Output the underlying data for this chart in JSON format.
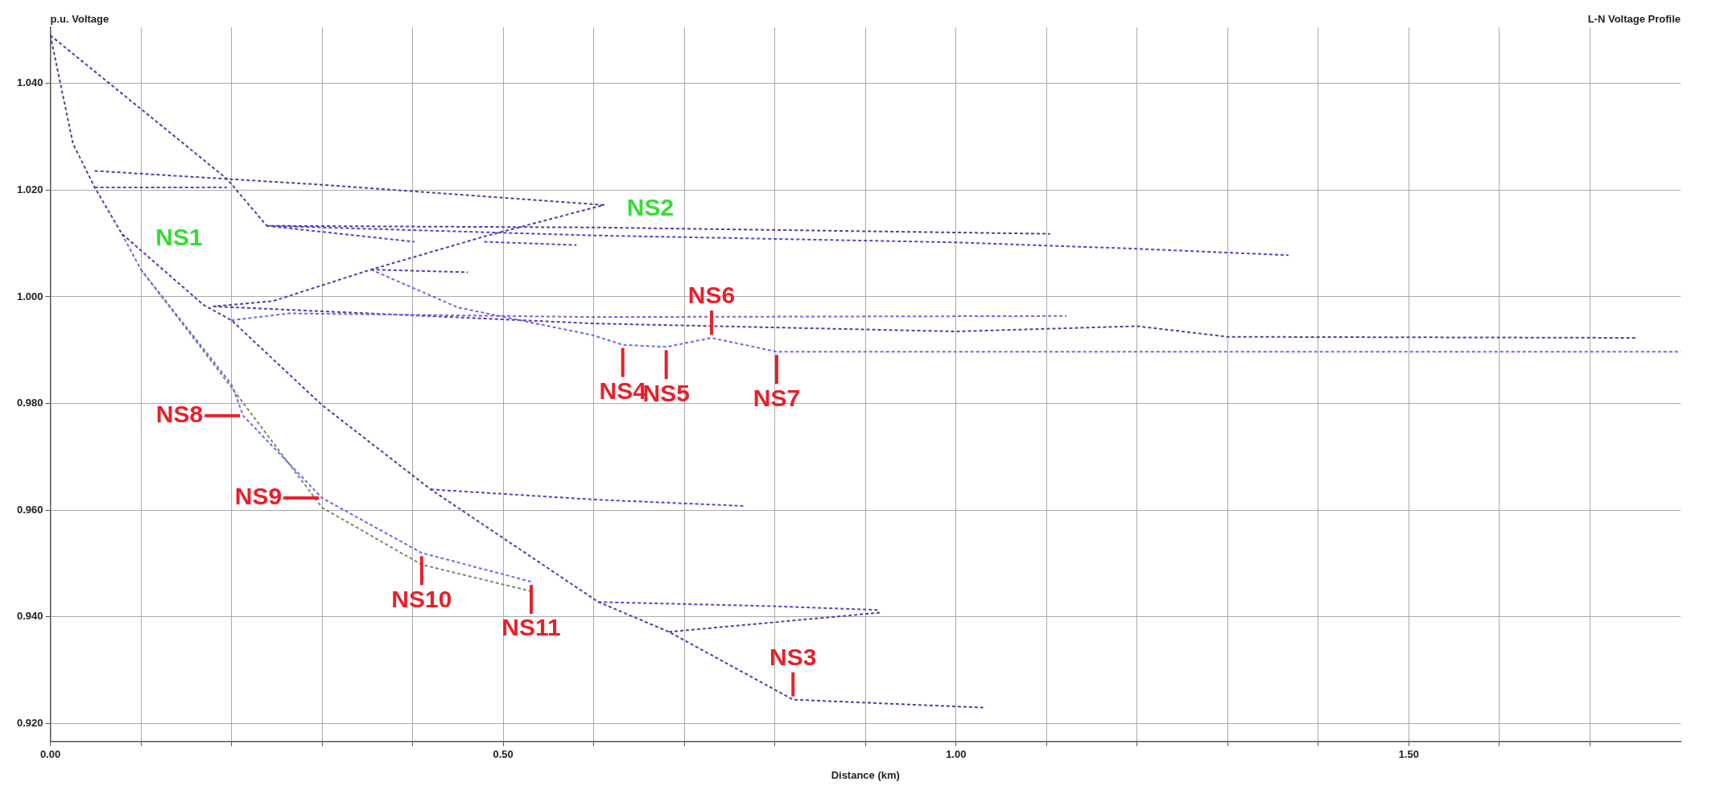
{
  "chart_data": {
    "type": "line",
    "title": "L-N Voltage Profile",
    "xlabel": "Distance (km)",
    "ylabel": "p.u. Voltage",
    "xlim": [
      0,
      1.8
    ],
    "ylim": [
      0.9167,
      1.0505
    ],
    "xticks": [
      {
        "value": 0,
        "label": "0.00"
      },
      {
        "value": 0.1,
        "label": null
      },
      {
        "value": 0.2,
        "label": null
      },
      {
        "value": 0.3,
        "label": null
      },
      {
        "value": 0.4,
        "label": null
      },
      {
        "value": 0.5,
        "label": "0.50"
      },
      {
        "value": 0.6,
        "label": null
      },
      {
        "value": 0.7,
        "label": null
      },
      {
        "value": 0.8,
        "label": null
      },
      {
        "value": 0.9,
        "label": null
      },
      {
        "value": 1.0,
        "label": "1.00"
      },
      {
        "value": 1.1,
        "label": null
      },
      {
        "value": 1.2,
        "label": null
      },
      {
        "value": 1.3,
        "label": null
      },
      {
        "value": 1.4,
        "label": null
      },
      {
        "value": 1.5,
        "label": "1.50"
      },
      {
        "value": 1.6,
        "label": null
      },
      {
        "value": 1.7,
        "label": null
      }
    ],
    "yticks": [
      {
        "value": 0.92,
        "label": "0.920"
      },
      {
        "value": 0.94,
        "label": "0.940"
      },
      {
        "value": 0.96,
        "label": "0.960"
      },
      {
        "value": 0.98,
        "label": "0.980"
      },
      {
        "value": 1.0,
        "label": "1.000"
      },
      {
        "value": 1.02,
        "label": "1.020"
      },
      {
        "value": 1.04,
        "label": "1.040"
      }
    ],
    "grid": true,
    "legend": false,
    "marker": "none",
    "line_style": "dashed",
    "series": [
      {
        "color": "#5a3aa8",
        "x": [
          0,
          0.195,
          0.239,
          0.6,
          1.104
        ],
        "values": [
          1.049,
          1.0221,
          1.0133,
          1.013,
          1.0118
        ]
      },
      {
        "color": "#4a4ad0",
        "x": [
          0.239,
          0.6,
          1.0,
          1.2,
          1.367
        ],
        "values": [
          1.0133,
          1.0115,
          1.0102,
          1.009,
          1.0078
        ]
      },
      {
        "color": "#5a3aa8",
        "x": [
          0,
          0.025,
          0.049,
          0.079,
          0.169,
          0.2,
          0.3,
          0.42,
          0.605,
          0.683,
          0.82,
          1.03
        ],
        "values": [
          1.049,
          1.0287,
          1.0205,
          1.0118,
          0.9985,
          0.9956,
          0.9797,
          0.9639,
          0.9428,
          0.9372,
          0.9245,
          0.923
        ]
      },
      {
        "color": "#4a4ad0",
        "x": [
          0.42,
          0.6,
          0.765
        ],
        "values": [
          0.9639,
          0.962,
          0.9608
        ]
      },
      {
        "color": "#4a4ad0",
        "x": [
          0.605,
          0.8,
          0.916
        ],
        "values": [
          0.9428,
          0.942,
          0.9413
        ]
      },
      {
        "color": "#5a3aa8",
        "x": [
          0.683,
          0.916
        ],
        "values": [
          0.9372,
          0.9408
        ]
      },
      {
        "color": "#6a6af0",
        "x": [
          0.079,
          0.1,
          0.2,
          0.213,
          0.3,
          0.41,
          0.531
        ],
        "values": [
          1.0118,
          1.0051,
          0.9836,
          0.9777,
          0.9623,
          0.952,
          0.9466
        ]
      },
      {
        "color": "#7a8a6a",
        "x": [
          0.1,
          0.2,
          0.3,
          0.41,
          0.531
        ],
        "values": [
          1.0051,
          0.983,
          0.9605,
          0.9498,
          0.9448
        ]
      },
      {
        "color": "#5a3aa8",
        "x": [
          0.049,
          0.3,
          0.611,
          0.479,
          0.354,
          0.246,
          0.18
        ],
        "values": [
          1.0236,
          1.021,
          1.0172,
          1.0113,
          1.0051,
          0.9992,
          0.9982
        ]
      },
      {
        "color": "#4a4ad0",
        "x": [
          0.049,
          0.195
        ],
        "values": [
          1.0205,
          1.0205
        ]
      },
      {
        "color": "#5a3aa8",
        "x": [
          0.354,
          0.461
        ],
        "values": [
          1.0051,
          1.0046
        ]
      },
      {
        "color": "#4a4ad0",
        "x": [
          0.239,
          0.402
        ],
        "values": [
          1.0133,
          1.0103
        ]
      },
      {
        "color": "#4a4ad0",
        "x": [
          0.479,
          0.581
        ],
        "values": [
          1.0103,
          1.0097
        ]
      },
      {
        "color": "#6a6af0",
        "x": [
          0.354,
          0.45,
          0.599,
          0.632,
          0.68,
          0.73,
          0.802,
          1.8
        ],
        "values": [
          1.0051,
          0.998,
          0.9928,
          0.991,
          0.9906,
          0.9923,
          0.9897,
          0.9897
        ]
      },
      {
        "color": "#6a6af0",
        "x": [
          0.2,
          0.264,
          0.599,
          1.122
        ],
        "values": [
          0.9956,
          0.9969,
          0.9962,
          0.9964
        ]
      },
      {
        "color": "#5a3aa8",
        "x": [
          0.18,
          0.6,
          1.0,
          1.2,
          1.3,
          1.75
        ],
        "values": [
          0.9982,
          0.995,
          0.9935,
          0.9945,
          0.9925,
          0.9923
        ]
      }
    ],
    "annotations": [
      "NS1",
      "NS2",
      {
        "text": "NS3",
        "x": 0.82,
        "y": 0.9245
      },
      {
        "text": "NS4",
        "x": 0.632,
        "y": 0.991
      },
      {
        "text": "NS5",
        "x": 0.68,
        "y": 0.9906
      },
      {
        "text": "NS6",
        "x": 0.73,
        "y": 0.9923
      },
      {
        "text": "NS7",
        "x": 0.802,
        "y": 0.9897
      },
      {
        "text": "NS8",
        "x": 0.213,
        "y": 0.9777
      },
      {
        "text": "NS9",
        "x": 0.3,
        "y": 0.9623
      },
      {
        "text": "NS10",
        "x": 0.41,
        "y": 0.952
      },
      {
        "text": "NS11",
        "x": 0.531,
        "y": 0.9466
      }
    ]
  }
}
